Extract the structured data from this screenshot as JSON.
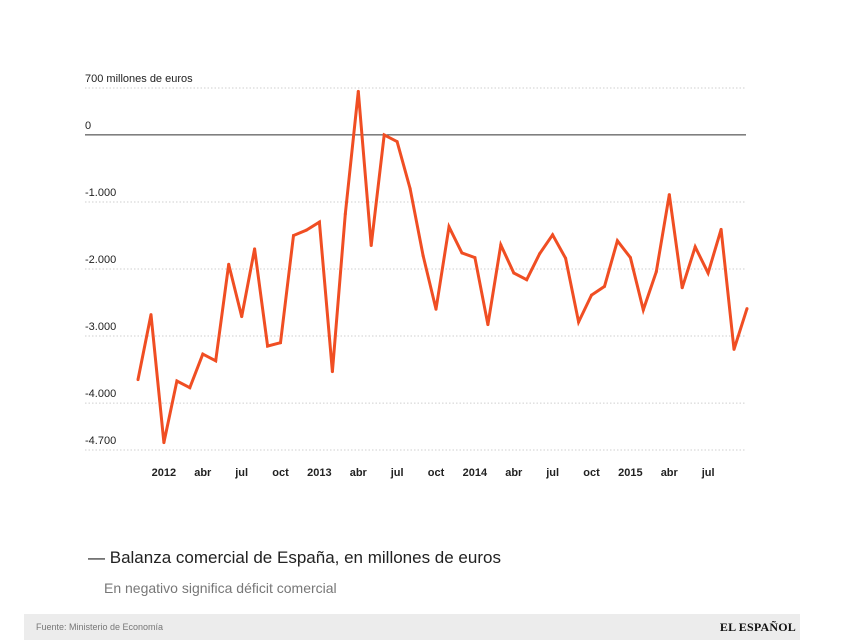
{
  "chart_data": {
    "type": "line",
    "title": "Balanza comercial de España, en millones de euros",
    "subtitle": "En negativo significa déficit comercial",
    "ylim": [
      -4700,
      700
    ],
    "y_ticks": [
      {
        "value": 700,
        "label": "700 millones de euros"
      },
      {
        "value": 0,
        "label": "0"
      },
      {
        "value": -1000,
        "label": "-1.000"
      },
      {
        "value": -2000,
        "label": "-2.000"
      },
      {
        "value": -3000,
        "label": "-3.000"
      },
      {
        "value": -4000,
        "label": "-4.000"
      },
      {
        "value": -4700,
        "label": "-4.700"
      }
    ],
    "x_ticks": [
      {
        "index": 2,
        "label": "2012"
      },
      {
        "index": 5,
        "label": "abr"
      },
      {
        "index": 8,
        "label": "jul"
      },
      {
        "index": 11,
        "label": "oct"
      },
      {
        "index": 14,
        "label": "2013"
      },
      {
        "index": 17,
        "label": "abr"
      },
      {
        "index": 20,
        "label": "jul"
      },
      {
        "index": 23,
        "label": "oct"
      },
      {
        "index": 26,
        "label": "2014"
      },
      {
        "index": 29,
        "label": "abr"
      },
      {
        "index": 32,
        "label": "jul"
      },
      {
        "index": 35,
        "label": "oct"
      },
      {
        "index": 38,
        "label": "2015"
      },
      {
        "index": 41,
        "label": "abr"
      },
      {
        "index": 44,
        "label": "jul"
      }
    ],
    "grid": true,
    "series": [
      {
        "name": "Balanza comercial de España, en millones de euros",
        "color": "#f04e23",
        "values": [
          -3650,
          -2680,
          -4590,
          -3670,
          -3770,
          -3270,
          -3370,
          -1930,
          -2710,
          -1700,
          -3150,
          -3100,
          -1500,
          -1420,
          -1300,
          -3530,
          -1180,
          650,
          -1650,
          0,
          -100,
          -800,
          -1800,
          -2600,
          -1370,
          -1760,
          -1830,
          -2830,
          -1640,
          -2060,
          -2160,
          -1770,
          -1490,
          -1840,
          -2790,
          -2390,
          -2260,
          -1580,
          -1830,
          -2610,
          -2040,
          -890,
          -2280,
          -1670,
          -2060,
          -1410,
          -3200,
          -2590
        ]
      }
    ]
  },
  "footer": {
    "source": "Fuente: Ministerio de Economía",
    "brand": "EL ESPAÑOL"
  }
}
